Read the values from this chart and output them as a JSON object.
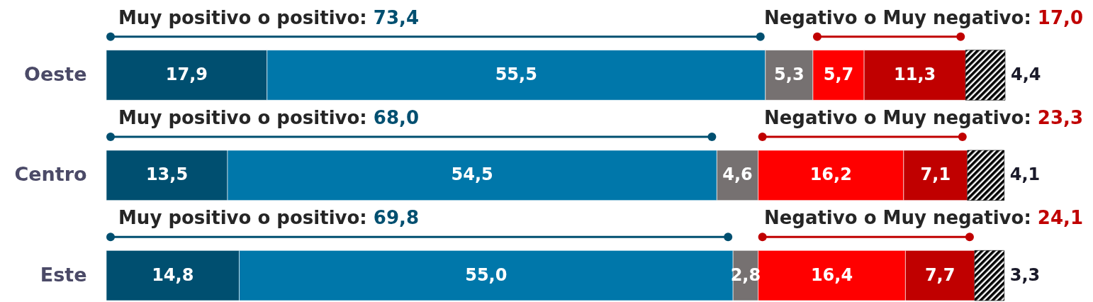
{
  "chart_data": {
    "type": "bar",
    "orientation": "horizontal",
    "stacked": true,
    "tick_labels": "y",
    "categories": [
      "Oeste",
      "Centro",
      "Este"
    ],
    "xlim": [
      0,
      100.1
    ],
    "series": [
      {
        "color": "#004f70",
        "values": [
          17.9,
          13.5,
          14.8
        ],
        "value_labels": [
          "17,9",
          "13,5",
          "14,8"
        ]
      },
      {
        "color": "#0077aa",
        "values": [
          55.5,
          54.5,
          55.0
        ],
        "value_labels": [
          "55,5",
          "54,5",
          "55,0"
        ]
      },
      {
        "color": "#767171",
        "values": [
          5.3,
          4.6,
          2.8
        ],
        "value_labels": [
          "5,3",
          "4,6",
          "2,8"
        ]
      },
      {
        "color": "#ff0000",
        "values": [
          5.7,
          16.2,
          16.4
        ],
        "value_labels": [
          "5,7",
          "16,2",
          "16,4"
        ]
      },
      {
        "color": "#c00000",
        "values": [
          11.3,
          7.1,
          7.7
        ],
        "value_labels": [
          "11,3",
          "7,1",
          "7,7"
        ]
      },
      {
        "color": "#000000",
        "values": [
          4.4,
          4.1,
          3.3
        ],
        "value_labels": [
          "4,4",
          "4,1",
          "3,3"
        ]
      }
    ],
    "annotations": [
      "Muy positivo o positivo: 73,4",
      "Negativo o Muy negativo: 17,0",
      "Muy positivo o positivo: 68,0",
      "Negativo o Muy negativo: 23,3",
      "Muy positivo o positivo: 69,8",
      "Negativo o Muy negativo: 24,1"
    ]
  }
}
